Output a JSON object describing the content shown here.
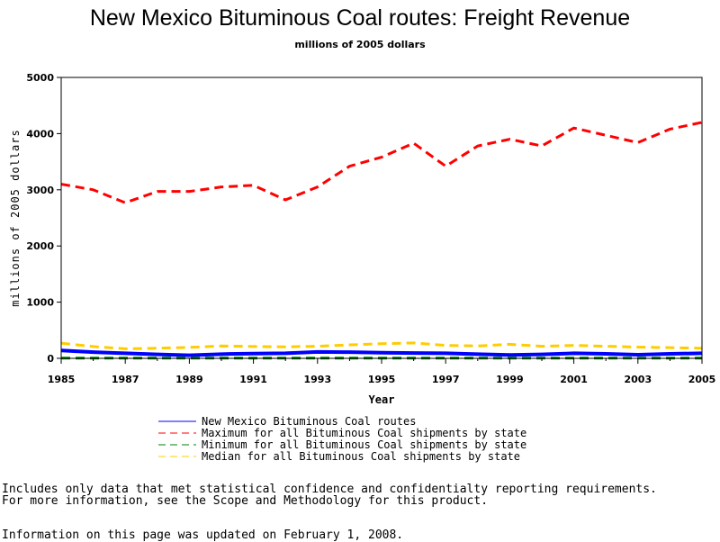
{
  "chart_data": {
    "type": "line",
    "title": "New Mexico Bituminous Coal routes: Freight Revenue",
    "subtitle": "millions of 2005 dollars",
    "xlabel": "Year",
    "ylabel": "millions of 2005 dollars",
    "xlim": [
      1985,
      2005
    ],
    "ylim": [
      0,
      5000
    ],
    "x_ticks": [
      "1985",
      "1987",
      "1989",
      "1991",
      "1993",
      "1995",
      "1997",
      "1999",
      "2001",
      "2003",
      "2005"
    ],
    "y_ticks": [
      "0",
      "1000",
      "2000",
      "3000",
      "4000",
      "5000"
    ],
    "grid": false,
    "legend_position": "bottom",
    "x": [
      1985,
      1986,
      1987,
      1988,
      1989,
      1990,
      1991,
      1992,
      1993,
      1994,
      1995,
      1996,
      1997,
      1998,
      1999,
      2000,
      2001,
      2002,
      2003,
      2004,
      2005
    ],
    "series": [
      {
        "name": "New Mexico Bituminous Coal routes",
        "color": "#0000ff",
        "style": "solid",
        "values": [
          140,
          110,
          90,
          70,
          55,
          75,
          85,
          90,
          115,
          110,
          100,
          95,
          90,
          75,
          60,
          70,
          90,
          80,
          65,
          80,
          90
        ]
      },
      {
        "name": "Maximum for all Bituminous Coal shipments by state",
        "color": "#ff0000",
        "style": "dashed",
        "values": [
          3100,
          3000,
          2770,
          2970,
          2970,
          3050,
          3080,
          2820,
          3050,
          3420,
          3580,
          3830,
          3420,
          3780,
          3900,
          3780,
          4100,
          3970,
          3840,
          4080,
          4200
        ]
      },
      {
        "name": "Minimum for all Bituminous Coal shipments by state",
        "color": "#008000",
        "style": "dashed",
        "values": [
          5,
          5,
          5,
          5,
          5,
          5,
          5,
          5,
          5,
          5,
          5,
          5,
          5,
          5,
          5,
          5,
          5,
          5,
          5,
          5,
          5
        ]
      },
      {
        "name": "Median for all Bituminous Coal shipments by state",
        "color": "#ffcc00",
        "style": "dashed",
        "values": [
          270,
          210,
          170,
          180,
          195,
          220,
          210,
          205,
          215,
          240,
          260,
          275,
          230,
          220,
          250,
          215,
          230,
          215,
          200,
          190,
          180
        ]
      }
    ]
  },
  "footnotes": {
    "line1": "Includes only data that met statistical confidence and confidentialty reporting requirements.",
    "line2": "For more information, see the Scope and Methodology for this product.",
    "line3": "Information on this page was updated on February 1, 2008."
  }
}
